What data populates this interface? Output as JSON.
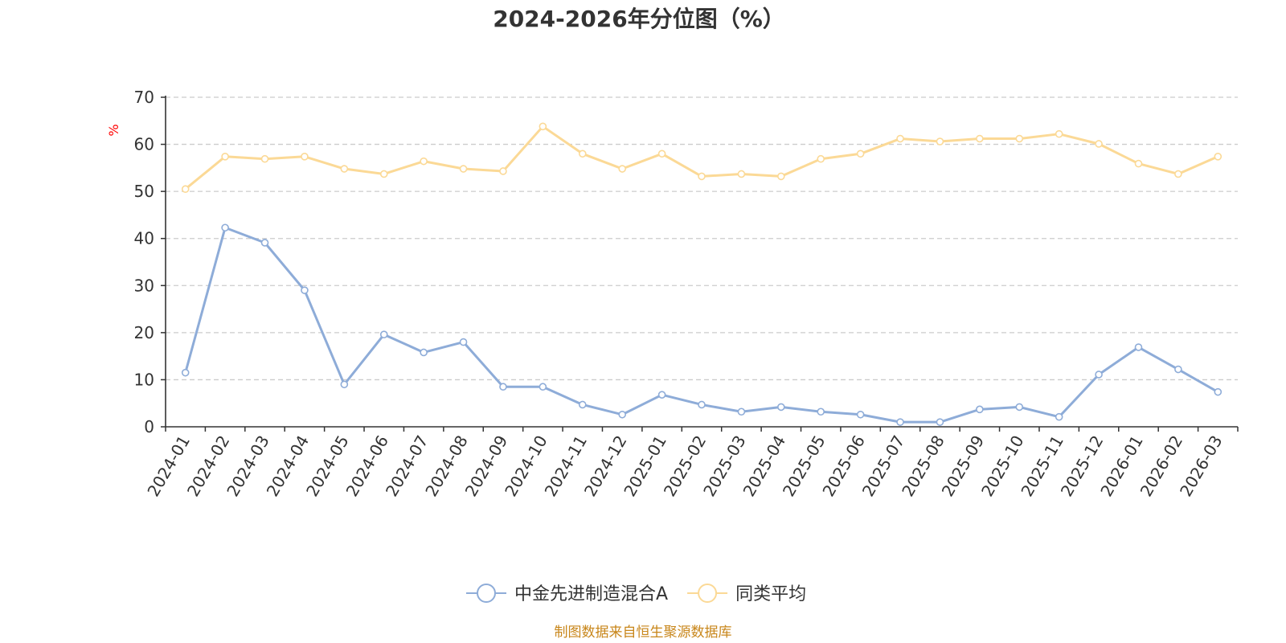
{
  "chart_data": {
    "type": "line",
    "title": "2024-2026年分位图（%）",
    "y_unit": "%",
    "ylim": [
      0,
      70
    ],
    "y_ticks": [
      0,
      10,
      20,
      30,
      40,
      50,
      60,
      70
    ],
    "grid": true,
    "legend_position": "bottom-center",
    "categories": [
      "2024-01",
      "2024-02",
      "2024-03",
      "2024-04",
      "2024-05",
      "2024-06",
      "2024-07",
      "2024-08",
      "2024-09",
      "2024-10",
      "2024-11",
      "2024-12",
      "2025-01",
      "2025-02",
      "2025-03",
      "2025-04",
      "2025-05",
      "2025-06",
      "2025-07",
      "2025-08",
      "2025-09",
      "2025-10",
      "2025-11",
      "2025-12",
      "2026-01",
      "2026-02",
      "2026-03"
    ],
    "series": [
      {
        "name": "中金先进制造混合A",
        "color": "#8eacd8",
        "values": [
          11.5,
          42.3,
          39.1,
          29.0,
          9.0,
          19.6,
          15.8,
          18.0,
          8.5,
          8.5,
          4.7,
          2.6,
          6.8,
          4.7,
          3.2,
          4.2,
          3.2,
          2.6,
          1.0,
          1.0,
          3.7,
          4.2,
          2.1,
          11.1,
          16.9,
          12.2,
          7.4
        ]
      },
      {
        "name": "同类平均",
        "color": "#fbd996",
        "values": [
          50.5,
          57.4,
          56.9,
          57.4,
          54.8,
          53.7,
          56.4,
          54.8,
          54.3,
          63.8,
          58.0,
          54.8,
          58.0,
          53.2,
          53.7,
          53.2,
          56.9,
          58.0,
          61.2,
          60.6,
          61.2,
          61.2,
          62.2,
          60.1,
          55.9,
          53.7,
          57.4
        ]
      }
    ]
  },
  "source_text": "制图数据来自恒生聚源数据库",
  "colors": {
    "axis": "#333333",
    "grid": "#cccccc",
    "unit": "#ff0000",
    "source": "#c8861a"
  }
}
